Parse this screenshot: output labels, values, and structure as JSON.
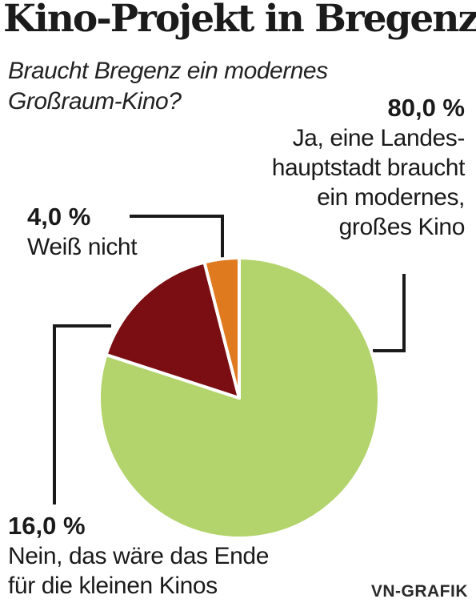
{
  "title": "Kino-Projekt in Bregenz",
  "subtitle": [
    "Braucht Bregenz ein modernes",
    "Großraum-Kino?"
  ],
  "chart_data": {
    "type": "pie",
    "title": "Kino-Projekt in Bregenz",
    "subtitle": "Braucht Bregenz ein modernes Großraum-Kino?",
    "slices": [
      {
        "value": 80.0,
        "value_label": "80,0 %",
        "label_lines": [
          "Ja, eine Landes-",
          "hauptstadt braucht",
          "ein modernes,",
          "großes Kino"
        ],
        "color": "#b3d46c"
      },
      {
        "value": 16.0,
        "value_label": "16,0 %",
        "label_lines": [
          "Nein, das wäre das Ende",
          "für die kleinen Kinos"
        ],
        "color": "#7a0e12"
      },
      {
        "value": 4.0,
        "value_label": "4,0 %",
        "label_lines": [
          "Weiß nicht"
        ],
        "color": "#e07a1f"
      }
    ],
    "start_angle": "12 o'clock",
    "direction": "clockwise"
  },
  "credit": "VN-GRAFIK"
}
